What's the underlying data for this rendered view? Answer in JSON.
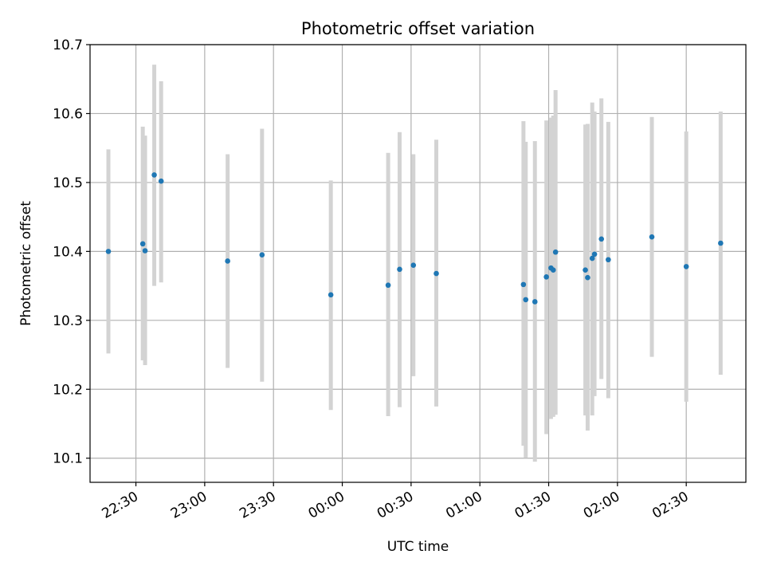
{
  "chart_data": {
    "type": "scatter",
    "title": "Photometric offset variation",
    "xlabel": "UTC time",
    "ylabel": "Photometric offset",
    "grid": true,
    "legend": "none",
    "x_axis": {
      "min": "22:10",
      "max": "02:56",
      "ticks": [
        "22:30",
        "23:00",
        "23:30",
        "00:00",
        "00:30",
        "01:00",
        "01:30",
        "02:00",
        "02:30"
      ]
    },
    "y_axis": {
      "min": 10.065,
      "max": 10.7,
      "ticks": [
        "10.1",
        "10.2",
        "10.3",
        "10.4",
        "10.5",
        "10.6",
        "10.7"
      ]
    },
    "colors": {
      "point": "#1f77b4",
      "errorbar": "#d3d3d3",
      "grid": "#b0b0b0"
    },
    "points": [
      {
        "x": "22:18",
        "y": 10.4,
        "lo": 10.252,
        "hi": 10.548
      },
      {
        "x": "22:33",
        "y": 10.411,
        "lo": 10.242,
        "hi": 10.581
      },
      {
        "x": "22:34",
        "y": 10.401,
        "lo": 10.235,
        "hi": 10.568
      },
      {
        "x": "22:38",
        "y": 10.511,
        "lo": 10.35,
        "hi": 10.671
      },
      {
        "x": "22:41",
        "y": 10.502,
        "lo": 10.355,
        "hi": 10.647
      },
      {
        "x": "23:10",
        "y": 10.386,
        "lo": 10.231,
        "hi": 10.541
      },
      {
        "x": "23:25",
        "y": 10.395,
        "lo": 10.211,
        "hi": 10.578
      },
      {
        "x": "23:55",
        "y": 10.337,
        "lo": 10.17,
        "hi": 10.503
      },
      {
        "x": "00:20",
        "y": 10.351,
        "lo": 10.161,
        "hi": 10.543
      },
      {
        "x": "00:25",
        "y": 10.374,
        "lo": 10.174,
        "hi": 10.573
      },
      {
        "x": "00:31",
        "y": 10.38,
        "lo": 10.219,
        "hi": 10.541
      },
      {
        "x": "00:41",
        "y": 10.368,
        "lo": 10.175,
        "hi": 10.562
      },
      {
        "x": "01:19",
        "y": 10.352,
        "lo": 10.118,
        "hi": 10.589
      },
      {
        "x": "01:20",
        "y": 10.33,
        "lo": 10.101,
        "hi": 10.559
      },
      {
        "x": "01:24",
        "y": 10.327,
        "lo": 10.095,
        "hi": 10.56
      },
      {
        "x": "01:29",
        "y": 10.363,
        "lo": 10.135,
        "hi": 10.59
      },
      {
        "x": "01:31",
        "y": 10.376,
        "lo": 10.157,
        "hi": 10.594
      },
      {
        "x": "01:32",
        "y": 10.373,
        "lo": 10.16,
        "hi": 10.597
      },
      {
        "x": "01:33",
        "y": 10.399,
        "lo": 10.163,
        "hi": 10.634
      },
      {
        "x": "01:46",
        "y": 10.373,
        "lo": 10.162,
        "hi": 10.584
      },
      {
        "x": "01:47",
        "y": 10.362,
        "lo": 10.14,
        "hi": 10.585
      },
      {
        "x": "01:49",
        "y": 10.39,
        "lo": 10.162,
        "hi": 10.616
      },
      {
        "x": "01:50",
        "y": 10.396,
        "lo": 10.19,
        "hi": 10.603
      },
      {
        "x": "01:53",
        "y": 10.418,
        "lo": 10.215,
        "hi": 10.622
      },
      {
        "x": "01:56",
        "y": 10.388,
        "lo": 10.187,
        "hi": 10.588
      },
      {
        "x": "02:15",
        "y": 10.421,
        "lo": 10.247,
        "hi": 10.595
      },
      {
        "x": "02:30",
        "y": 10.378,
        "lo": 10.182,
        "hi": 10.574
      },
      {
        "x": "02:45",
        "y": 10.412,
        "lo": 10.221,
        "hi": 10.603
      }
    ]
  }
}
